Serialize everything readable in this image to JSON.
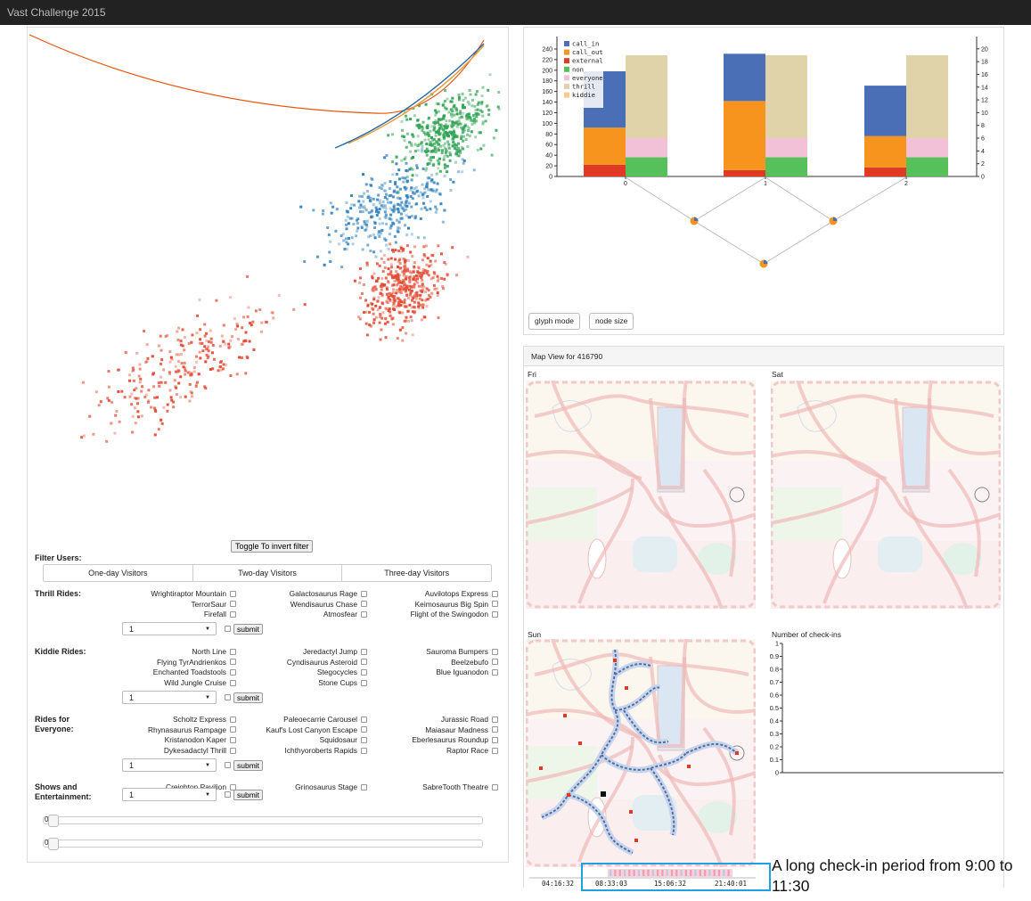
{
  "app": {
    "title": "Vast Challenge 2015"
  },
  "scatter": {
    "toggle_label": "Toggle To invert filter",
    "colors": {
      "red": "#e34a33",
      "blue": "#3182bd",
      "green": "#31a354",
      "orange_curve": "#e6550d"
    }
  },
  "filter": {
    "label": "Filter Users:",
    "visitors": [
      "One-day Visitors",
      "Two-day Visitors",
      "Three-day Visitors"
    ]
  },
  "ride_sections": [
    {
      "label": "Thrill Rides:",
      "selected": "1",
      "submit": "submit",
      "rides": [
        "Wrightiraptor Mountain",
        "Galactosaurus Rage",
        "Auvilotops Express",
        "TerrorSaur",
        "Wendisaurus Chase",
        "Keimosaurus Big Spin",
        "Firefall",
        "Atmosfear",
        "Flight of the Swingodon"
      ]
    },
    {
      "label": "Kiddie Rides:",
      "selected": "1",
      "submit": "submit",
      "rides": [
        "North Line",
        "Jeredactyl Jump",
        "Sauroma Bumpers",
        "Flying TyrAndrienkos",
        "Cyndisaurus Asteroid",
        "Beelzebufo",
        "Enchanted Toadstools",
        "Stegocycles",
        "Blue Iguanodon",
        "Wild Jungle Cruise",
        "Stone Cups"
      ]
    },
    {
      "label": "Rides for Everyone:",
      "selected": "1",
      "submit": "submit",
      "rides": [
        "Scholtz Express",
        "Paleoecarrie Carousel",
        "Jurassic Road",
        "Rhynasaurus Rampage",
        "Kauf's Lost Canyon Escape",
        "Maiasaur Madness",
        "Kristanodon Kaper",
        "Squidosaur",
        "Eberlesaurus Roundup",
        "Dykesadactyl Thrill",
        "Ichthyoroberts Rapids",
        "Raptor Race"
      ]
    },
    {
      "label": "Shows and Entertainment:",
      "selected": "1",
      "submit": "submit",
      "rides": [
        "Creighton Pavilion",
        "Grinosaurus Stage",
        "SabreTooth Theatre"
      ]
    }
  ],
  "sliders": [
    {
      "value": "0"
    },
    {
      "value": "0"
    }
  ],
  "bar_panel": {
    "buttons": [
      "glyph mode",
      "node size"
    ]
  },
  "chart_data": {
    "type": "bar",
    "categories": [
      "0",
      "1",
      "2"
    ],
    "left_axis_ticks": [
      "0",
      "20",
      "40",
      "60",
      "80",
      "100",
      "120",
      "140",
      "160",
      "180",
      "200",
      "220",
      "240"
    ],
    "right_axis_ticks": [
      "0",
      "2",
      "4",
      "6",
      "8",
      "10",
      "12",
      "14",
      "16",
      "18",
      "20"
    ],
    "ylim_left": [
      0,
      250
    ],
    "ylim_right": [
      0,
      20.8
    ],
    "legend": [
      {
        "name": "call_in",
        "color": "#4a6fb7"
      },
      {
        "name": "call_out",
        "color": "#f7941d"
      },
      {
        "name": "external",
        "color": "#e03a24"
      },
      {
        "name": "non",
        "color": "#56c15a"
      },
      {
        "name": "everyone",
        "color": "#f2c1d8"
      },
      {
        "name": "thrill",
        "color": "#e0d3a9"
      },
      {
        "name": "kiddie",
        "color": "#f7c98f"
      }
    ],
    "stacks_left_axis": [
      {
        "external": 22,
        "call_out": 70,
        "call_in": 106
      },
      {
        "external": 12,
        "call_out": 130,
        "call_in": 89
      },
      {
        "external": 17,
        "call_out": 59,
        "call_in": 95
      }
    ],
    "stacks_right_axis": [
      {
        "non": 3,
        "everyone": 3,
        "thrill": 13
      },
      {
        "non": 3,
        "everyone": 3,
        "thrill": 13
      },
      {
        "non": 3,
        "everyone": 3,
        "thrill": 13
      }
    ]
  },
  "map_view": {
    "title": "Map View for 416790",
    "days": [
      "Fri",
      "Sat",
      "Sun"
    ],
    "checkins_title": "Number of check-ins",
    "checkins_ticks": [
      "0",
      "0.1",
      "0.2",
      "0.3",
      "0.4",
      "0.5",
      "0.6",
      "0.7",
      "0.8",
      "0.9",
      "1"
    ],
    "timeline_labels": [
      "04:16:32",
      "08:33:03",
      "15:06:32",
      "21:40:01"
    ]
  },
  "annotation": {
    "text": "A long check-in period from 9:00 to 11:30"
  }
}
